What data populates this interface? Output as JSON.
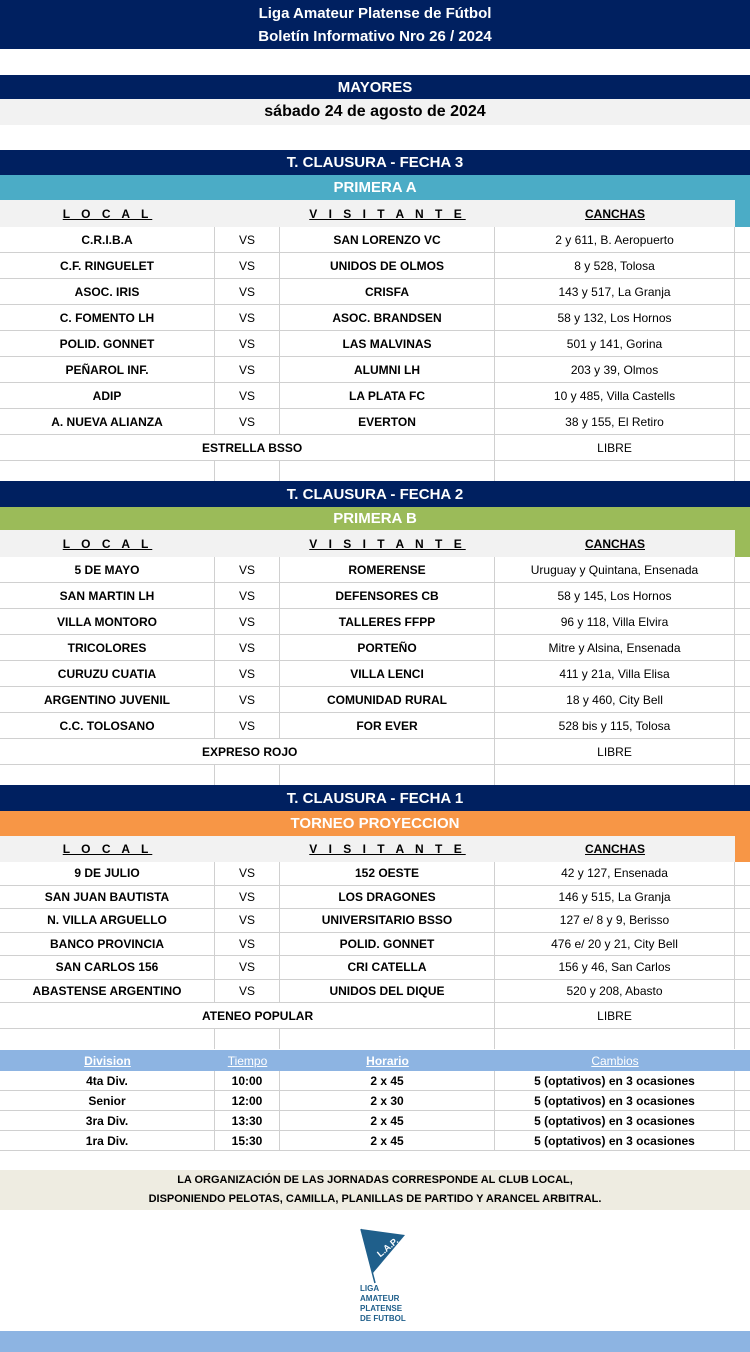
{
  "header": {
    "line1": "Liga Amateur Platense de Fútbol",
    "line2": "Boletín Informativo Nro  26 / 2024"
  },
  "category": "MAYORES",
  "date": "sábado 24 de agosto de 2024",
  "columns": {
    "local": "L O C A L",
    "visitante": "V I S I T A N T E",
    "canchas": "CANCHAS",
    "vs": "VS"
  },
  "colors": {
    "navy": "#002060",
    "primera_a": "#4bacc6",
    "primera_b": "#9bbb59",
    "proyeccion": "#f79646",
    "division": "#8db4e2",
    "note": "#eeece1"
  },
  "sections": [
    {
      "fecha": "T. CLAUSURA - FECHA 3",
      "division": "PRIMERA A",
      "matches": [
        [
          "C.R.I.B.A",
          "SAN LORENZO VC",
          "2 y 611, B. Aeropuerto"
        ],
        [
          "C.F. RINGUELET",
          "UNIDOS DE OLMOS",
          "8 y 528, Tolosa"
        ],
        [
          "ASOC. IRIS",
          "CRISFA",
          "143 y 517, La Granja"
        ],
        [
          "C. FOMENTO LH",
          "ASOC. BRANDSEN",
          "58 y 132, Los Hornos"
        ],
        [
          "POLID. GONNET",
          "LAS MALVINAS",
          "501 y 141, Gorina"
        ],
        [
          "PEÑAROL INF.",
          "ALUMNI LH",
          "203 y 39, Olmos"
        ],
        [
          "ADIP",
          "LA PLATA FC",
          "10 y 485, Villa Castells"
        ],
        [
          "A. NUEVA ALIANZA",
          "EVERTON",
          "38 y 155, El Retiro"
        ]
      ],
      "libre_team": "ESTRELLA BSSO",
      "libre": "LIBRE"
    },
    {
      "fecha": "T. CLAUSURA - FECHA 2",
      "division": "PRIMERA B",
      "matches": [
        [
          "5 DE MAYO",
          "ROMERENSE",
          "Uruguay y Quintana, Ensenada"
        ],
        [
          "SAN MARTIN LH",
          "DEFENSORES CB",
          "58 y 145, Los Hornos"
        ],
        [
          "VILLA MONTORO",
          "TALLERES FFPP",
          "96 y 118, Villa Elvira"
        ],
        [
          "TRICOLORES",
          "PORTEÑO",
          "Mitre y Alsina, Ensenada"
        ],
        [
          "CURUZU CUATIA",
          "VILLA LENCI",
          "411 y 21a, Villa Elisa"
        ],
        [
          "ARGENTINO JUVENIL",
          "COMUNIDAD RURAL",
          "18 y 460, City Bell"
        ],
        [
          "C.C. TOLOSANO",
          "FOR EVER",
          "528 bis y 115, Tolosa"
        ]
      ],
      "libre_team": "EXPRESO ROJO",
      "libre": "LIBRE"
    },
    {
      "fecha": "T. CLAUSURA - FECHA 1",
      "division": "TORNEO PROYECCION",
      "matches": [
        [
          "9 DE JULIO",
          "152 OESTE",
          "42 y 127, Ensenada"
        ],
        [
          "SAN JUAN BAUTISTA",
          "LOS DRAGONES",
          "146 y 515, La Granja"
        ],
        [
          "N. VILLA ARGUELLO",
          "UNIVERSITARIO BSSO",
          "127 e/ 8 y 9, Berisso"
        ],
        [
          "BANCO PROVINCIA",
          "POLID. GONNET",
          "476 e/ 20 y 21, City Bell"
        ],
        [
          "SAN CARLOS 156",
          "CRI CATELLA",
          "156 y 46, San Carlos"
        ],
        [
          "ABASTENSE ARGENTINO",
          "UNIDOS DEL DIQUE",
          "520 y 208, Abasto"
        ]
      ],
      "libre_team": "ATENEO POPULAR",
      "libre": "LIBRE"
    }
  ],
  "divisions": {
    "headers": [
      "Division",
      "Tiempo",
      "Horario",
      "Cambios"
    ],
    "rows": [
      [
        "4ta Div.",
        "10:00",
        "2 x 45",
        "5 (optativos) en 3 ocasiones"
      ],
      [
        "Senior",
        "12:00",
        "2 x 30",
        "5 (optativos) en 3 ocasiones"
      ],
      [
        "3ra Div.",
        "13:30",
        "2 x 45",
        "5 (optativos) en 3 ocasiones"
      ],
      [
        "1ra Div.",
        "15:30",
        "2 x 45",
        "5 (optativos) en 3 ocasiones"
      ]
    ]
  },
  "note": {
    "line1": "LA ORGANIZACIÓN DE LAS JORNADAS CORRESPONDE AL CLUB LOCAL,",
    "line2": "DISPONIENDO PELOTAS, CAMILLA, PLANILLAS DE PARTIDO Y ARANCEL ARBITRAL."
  },
  "logo": {
    "flag": "L.A.P.",
    "text": [
      "LIGA",
      "AMATEUR",
      "PLATENSE",
      "DE FUTBOL"
    ]
  }
}
